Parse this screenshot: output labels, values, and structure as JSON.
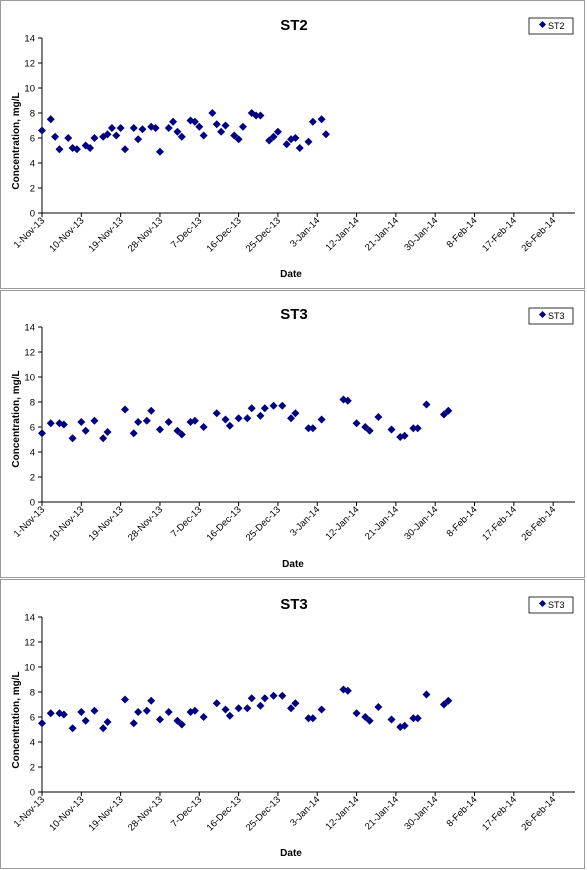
{
  "charts": [
    {
      "title": "ST2",
      "ylabel": "Concentration, mg/L",
      "xlabel": "Date",
      "legend": "ST2"
    },
    {
      "title": "ST3",
      "ylabel": "Concentration, mg/L",
      "xlabel": "Date",
      "legend": "ST3"
    },
    {
      "title": "ST3",
      "ylabel": "Concentration, mg/L",
      "xlabel": "Date",
      "legend": "ST3"
    }
  ],
  "chart_data": [
    {
      "type": "scatter",
      "title": "ST2",
      "xlabel": "Date",
      "ylabel": "Concentration, mg/L",
      "ylim": [
        0,
        14
      ],
      "yticks": [
        0,
        2,
        4,
        6,
        8,
        10,
        12,
        14
      ],
      "xlim": [
        "2013-11-01",
        "2014-03-03"
      ],
      "xtick_dates": [
        "2013-11-01",
        "2013-11-10",
        "2013-11-19",
        "2013-11-28",
        "2013-12-07",
        "2013-12-16",
        "2013-12-25",
        "2014-01-03",
        "2014-01-12",
        "2014-01-21",
        "2014-01-30",
        "2014-02-08",
        "2014-02-17",
        "2014-02-26"
      ],
      "xtick_labels": [
        "1-Nov-13",
        "10-Nov-13",
        "19-Nov-13",
        "28-Nov-13",
        "7-Dec-13",
        "16-Dec-13",
        "25-Dec-13",
        "3-Jan-14",
        "12-Jan-14",
        "21-Jan-14",
        "30-Jan-14",
        "8-Feb-14",
        "17-Feb-14",
        "26-Feb-14"
      ],
      "grid": false,
      "legend_position": "top-right",
      "series": [
        {
          "name": "ST2",
          "color": "#000080",
          "marker": "diamond",
          "points": [
            [
              "2013-11-01",
              6.6
            ],
            [
              "2013-11-03",
              7.5
            ],
            [
              "2013-11-04",
              6.1
            ],
            [
              "2013-11-05",
              5.1
            ],
            [
              "2013-11-07",
              6.0
            ],
            [
              "2013-11-08",
              5.2
            ],
            [
              "2013-11-09",
              5.1
            ],
            [
              "2013-11-11",
              5.4
            ],
            [
              "2013-11-12",
              5.2
            ],
            [
              "2013-11-13",
              6.0
            ],
            [
              "2013-11-15",
              6.1
            ],
            [
              "2013-11-16",
              6.3
            ],
            [
              "2013-11-17",
              6.8
            ],
            [
              "2013-11-18",
              6.2
            ],
            [
              "2013-11-19",
              6.8
            ],
            [
              "2013-11-20",
              5.1
            ],
            [
              "2013-11-22",
              6.8
            ],
            [
              "2013-11-23",
              5.9
            ],
            [
              "2013-11-24",
              6.7
            ],
            [
              "2013-11-26",
              6.9
            ],
            [
              "2013-11-27",
              6.8
            ],
            [
              "2013-11-28",
              4.9
            ],
            [
              "2013-11-30",
              6.8
            ],
            [
              "2013-12-01",
              7.3
            ],
            [
              "2013-12-02",
              6.5
            ],
            [
              "2013-12-03",
              6.1
            ],
            [
              "2013-12-05",
              7.4
            ],
            [
              "2013-12-06",
              7.3
            ],
            [
              "2013-12-07",
              6.9
            ],
            [
              "2013-12-08",
              6.2
            ],
            [
              "2013-12-10",
              8.0
            ],
            [
              "2013-12-11",
              7.1
            ],
            [
              "2013-12-12",
              6.5
            ],
            [
              "2013-12-13",
              7.0
            ],
            [
              "2013-12-15",
              6.2
            ],
            [
              "2013-12-16",
              5.9
            ],
            [
              "2013-12-17",
              6.9
            ],
            [
              "2013-12-19",
              8.0
            ],
            [
              "2013-12-20",
              7.8
            ],
            [
              "2013-12-21",
              7.8
            ],
            [
              "2013-12-23",
              5.8
            ],
            [
              "2013-12-24",
              6.1
            ],
            [
              "2013-12-25",
              6.5
            ],
            [
              "2013-12-27",
              5.5
            ],
            [
              "2013-12-28",
              5.9
            ],
            [
              "2013-12-29",
              6.0
            ],
            [
              "2013-12-30",
              5.2
            ],
            [
              "2014-01-01",
              5.7
            ],
            [
              "2014-01-02",
              7.3
            ],
            [
              "2014-01-04",
              7.5
            ],
            [
              "2014-01-05",
              6.3
            ]
          ]
        }
      ]
    },
    {
      "type": "scatter",
      "title": "ST3",
      "xlabel": "Date",
      "ylabel": "Concentration, mg/L",
      "ylim": [
        0,
        14
      ],
      "yticks": [
        0,
        2,
        4,
        6,
        8,
        10,
        12,
        14
      ],
      "xlim": [
        "2013-11-01",
        "2014-03-03"
      ],
      "xtick_dates": [
        "2013-11-01",
        "2013-11-10",
        "2013-11-19",
        "2013-11-28",
        "2013-12-07",
        "2013-12-16",
        "2013-12-25",
        "2014-01-03",
        "2014-01-12",
        "2014-01-21",
        "2014-01-30",
        "2014-02-08",
        "2014-02-17",
        "2014-02-26"
      ],
      "xtick_labels": [
        "1-Nov-13",
        "10-Nov-13",
        "19-Nov-13",
        "28-Nov-13",
        "7-Dec-13",
        "16-Dec-13",
        "25-Dec-13",
        "3-Jan-14",
        "12-Jan-14",
        "21-Jan-14",
        "30-Jan-14",
        "8-Feb-14",
        "17-Feb-14",
        "26-Feb-14"
      ],
      "grid": false,
      "legend_position": "top-right",
      "series": [
        {
          "name": "ST3",
          "color": "#000080",
          "marker": "diamond",
          "points": [
            [
              "2013-11-01",
              5.5
            ],
            [
              "2013-11-03",
              6.3
            ],
            [
              "2013-11-05",
              6.3
            ],
            [
              "2013-11-06",
              6.2
            ],
            [
              "2013-11-08",
              5.1
            ],
            [
              "2013-11-10",
              6.4
            ],
            [
              "2013-11-11",
              5.7
            ],
            [
              "2013-11-13",
              6.5
            ],
            [
              "2013-11-15",
              5.1
            ],
            [
              "2013-11-16",
              5.6
            ],
            [
              "2013-11-20",
              7.4
            ],
            [
              "2013-11-22",
              5.5
            ],
            [
              "2013-11-23",
              6.4
            ],
            [
              "2013-11-25",
              6.5
            ],
            [
              "2013-11-26",
              7.3
            ],
            [
              "2013-11-28",
              5.8
            ],
            [
              "2013-11-30",
              6.4
            ],
            [
              "2013-12-02",
              5.7
            ],
            [
              "2013-12-03",
              5.4
            ],
            [
              "2013-12-05",
              6.4
            ],
            [
              "2013-12-06",
              6.5
            ],
            [
              "2013-12-08",
              6.0
            ],
            [
              "2013-12-11",
              7.1
            ],
            [
              "2013-12-13",
              6.6
            ],
            [
              "2013-12-14",
              6.1
            ],
            [
              "2013-12-16",
              6.7
            ],
            [
              "2013-12-18",
              6.7
            ],
            [
              "2013-12-19",
              7.5
            ],
            [
              "2013-12-21",
              6.9
            ],
            [
              "2013-12-22",
              7.5
            ],
            [
              "2013-12-24",
              7.7
            ],
            [
              "2013-12-26",
              7.7
            ],
            [
              "2013-12-28",
              6.7
            ],
            [
              "2013-12-29",
              7.1
            ],
            [
              "2014-01-01",
              5.9
            ],
            [
              "2014-01-02",
              5.9
            ],
            [
              "2014-01-04",
              6.6
            ],
            [
              "2014-01-09",
              8.2
            ],
            [
              "2014-01-10",
              8.1
            ],
            [
              "2014-01-12",
              6.3
            ],
            [
              "2014-01-14",
              6.0
            ],
            [
              "2014-01-15",
              5.7
            ],
            [
              "2014-01-17",
              6.8
            ],
            [
              "2014-01-20",
              5.8
            ],
            [
              "2014-01-22",
              5.2
            ],
            [
              "2014-01-23",
              5.3
            ],
            [
              "2014-01-25",
              5.9
            ],
            [
              "2014-01-26",
              5.9
            ],
            [
              "2014-01-28",
              7.8
            ],
            [
              "2014-02-01",
              7.0
            ],
            [
              "2014-02-02",
              7.3
            ]
          ]
        }
      ]
    },
    {
      "type": "scatter",
      "title": "ST3",
      "xlabel": "Date",
      "ylabel": "Concentration, mg/L",
      "ylim": [
        0,
        14
      ],
      "yticks": [
        0,
        2,
        4,
        6,
        8,
        10,
        12,
        14
      ],
      "xlim": [
        "2013-11-01",
        "2014-03-03"
      ],
      "xtick_dates": [
        "2013-11-01",
        "2013-11-10",
        "2013-11-19",
        "2013-11-28",
        "2013-12-07",
        "2013-12-16",
        "2013-12-25",
        "2014-01-03",
        "2014-01-12",
        "2014-01-21",
        "2014-01-30",
        "2014-02-08",
        "2014-02-17",
        "2014-02-26"
      ],
      "xtick_labels": [
        "1-Nov-13",
        "10-Nov-13",
        "19-Nov-13",
        "28-Nov-13",
        "7-Dec-13",
        "16-Dec-13",
        "25-Dec-13",
        "3-Jan-14",
        "12-Jan-14",
        "21-Jan-14",
        "30-Jan-14",
        "8-Feb-14",
        "17-Feb-14",
        "26-Feb-14"
      ],
      "grid": false,
      "legend_position": "top-right",
      "series": [
        {
          "name": "ST3",
          "color": "#000080",
          "marker": "diamond",
          "points": [
            [
              "2013-11-01",
              5.5
            ],
            [
              "2013-11-03",
              6.3
            ],
            [
              "2013-11-05",
              6.3
            ],
            [
              "2013-11-06",
              6.2
            ],
            [
              "2013-11-08",
              5.1
            ],
            [
              "2013-11-10",
              6.4
            ],
            [
              "2013-11-11",
              5.7
            ],
            [
              "2013-11-13",
              6.5
            ],
            [
              "2013-11-15",
              5.1
            ],
            [
              "2013-11-16",
              5.6
            ],
            [
              "2013-11-20",
              7.4
            ],
            [
              "2013-11-22",
              5.5
            ],
            [
              "2013-11-23",
              6.4
            ],
            [
              "2013-11-25",
              6.5
            ],
            [
              "2013-11-26",
              7.3
            ],
            [
              "2013-11-28",
              5.8
            ],
            [
              "2013-11-30",
              6.4
            ],
            [
              "2013-12-02",
              5.7
            ],
            [
              "2013-12-03",
              5.4
            ],
            [
              "2013-12-05",
              6.4
            ],
            [
              "2013-12-06",
              6.5
            ],
            [
              "2013-12-08",
              6.0
            ],
            [
              "2013-12-11",
              7.1
            ],
            [
              "2013-12-13",
              6.6
            ],
            [
              "2013-12-14",
              6.1
            ],
            [
              "2013-12-16",
              6.7
            ],
            [
              "2013-12-18",
              6.7
            ],
            [
              "2013-12-19",
              7.5
            ],
            [
              "2013-12-21",
              6.9
            ],
            [
              "2013-12-22",
              7.5
            ],
            [
              "2013-12-24",
              7.7
            ],
            [
              "2013-12-26",
              7.7
            ],
            [
              "2013-12-28",
              6.7
            ],
            [
              "2013-12-29",
              7.1
            ],
            [
              "2014-01-01",
              5.9
            ],
            [
              "2014-01-02",
              5.9
            ],
            [
              "2014-01-04",
              6.6
            ],
            [
              "2014-01-09",
              8.2
            ],
            [
              "2014-01-10",
              8.1
            ],
            [
              "2014-01-12",
              6.3
            ],
            [
              "2014-01-14",
              6.0
            ],
            [
              "2014-01-15",
              5.7
            ],
            [
              "2014-01-17",
              6.8
            ],
            [
              "2014-01-20",
              5.8
            ],
            [
              "2014-01-22",
              5.2
            ],
            [
              "2014-01-23",
              5.3
            ],
            [
              "2014-01-25",
              5.9
            ],
            [
              "2014-01-26",
              5.9
            ],
            [
              "2014-01-28",
              7.8
            ],
            [
              "2014-02-01",
              7.0
            ],
            [
              "2014-02-02",
              7.3
            ]
          ]
        }
      ]
    }
  ]
}
